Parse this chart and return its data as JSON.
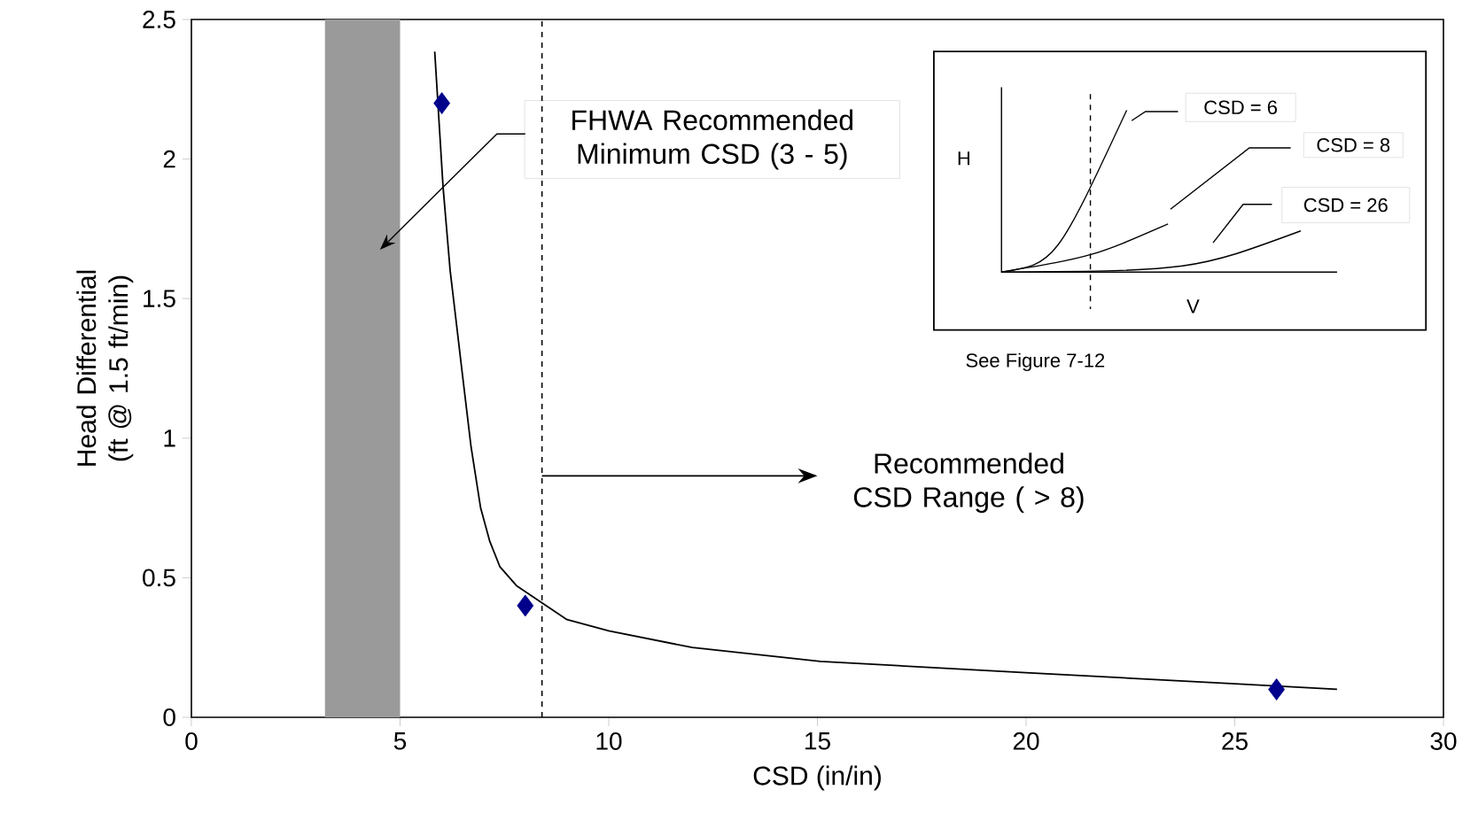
{
  "chart_data": {
    "type": "scatter",
    "xlabel": "CSD (in/in)",
    "ylabel": "Head Differential (ft @ 1.5 ft/min)",
    "xlim": [
      0,
      30
    ],
    "xticks": [
      0,
      5,
      10,
      15,
      20,
      25,
      30
    ],
    "ylim": [
      0,
      2.5
    ],
    "yticks": [
      0,
      0.5,
      1,
      1.5,
      2,
      2.5
    ],
    "marker": "diamond",
    "series": [
      {
        "type": "scatter",
        "color": "#00008b",
        "x": [
          6,
          8,
          26
        ],
        "values": [
          2.2,
          0.4,
          0.1
        ]
      },
      {
        "type": "line",
        "color": "#000000",
        "marker": "none",
        "x": [
          5.83,
          6.03,
          6.2,
          6.5,
          6.7,
          6.93,
          7.15,
          7.39,
          7.8,
          8.4,
          9,
          10,
          12,
          15.07,
          20,
          25,
          27.45
        ],
        "values": [
          2.385,
          1.9,
          1.6,
          1.22,
          0.97,
          0.75,
          0.63,
          0.54,
          0.47,
          0.41,
          0.35,
          0.31,
          0.25,
          0.2,
          0.16,
          0.12,
          0.1
        ]
      }
    ],
    "bands": [
      {
        "axis": "x",
        "from": 3.2,
        "to": 5,
        "color": "#9a9a9a"
      }
    ],
    "ref_lines": [
      {
        "axis": "x",
        "value": 8.4,
        "label": "Recommended CSD Range ( > 8)",
        "line_style": "dashed",
        "color": "#000000"
      }
    ],
    "annotations": [
      "See Figure 7-12",
      "H",
      "V",
      "CSD = 6",
      "CSD = 8",
      "CSD = 26",
      "FHWA Recommended Minimum CSD (3 - 5)"
    ]
  }
}
